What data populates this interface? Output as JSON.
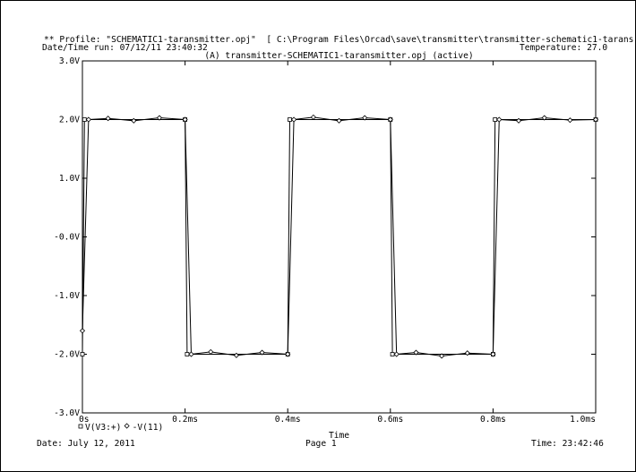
{
  "header": {
    "profile": "** Profile: \"SCHEMATIC1-taransmitter.opj\"  [ C:\\Program Files\\Orcad\\save\\transmitter\\transmitter-schematic1-tarans",
    "date_run": "Date/Time run: 07/12/11 23:40:32",
    "temperature": "Temperature: 27.0",
    "plot_title": "(A) transmitter-SCHEMATIC1-taransmitter.opj (active)"
  },
  "footer": {
    "date": "Date: July 12, 2011",
    "page": "Page 1",
    "time": "Time: 23:42:46"
  },
  "chart_data": {
    "type": "line",
    "title": "(A) transmitter-SCHEMATIC1-taransmitter.opj (active)",
    "xlabel": "Time",
    "ylabel": "",
    "xlim": [
      0,
      1.0
    ],
    "ylim": [
      -3.0,
      3.0
    ],
    "x_unit": "ms",
    "x_ticks": [
      0,
      0.2,
      0.4,
      0.6,
      0.8,
      1.0
    ],
    "x_tick_labels": [
      "0s",
      "0.2ms",
      "0.4ms",
      "0.6ms",
      "0.8ms",
      "1.0ms"
    ],
    "y_ticks": [
      3.0,
      2.0,
      1.0,
      0.0,
      -1.0,
      -2.0,
      -3.0
    ],
    "y_tick_labels": [
      "3.0V",
      "2.0V",
      "1.0V",
      "-0.0V",
      "-1.0V",
      "-2.0V",
      "-3.0V"
    ],
    "grid": false,
    "legend_position": "bottom-left",
    "series": [
      {
        "name": "V(V3:+)",
        "marker": "square",
        "x": [
          0,
          0.004,
          0.2,
          0.204,
          0.4,
          0.404,
          0.6,
          0.604,
          0.8,
          0.804,
          1.0
        ],
        "y": [
          -2.0,
          2.0,
          2.0,
          -2.0,
          -2.0,
          2.0,
          2.0,
          -2.0,
          -2.0,
          2.0,
          2.0
        ]
      },
      {
        "name": "V(11)",
        "marker": "diamond",
        "x": [
          0,
          0.012,
          0.05,
          0.1,
          0.15,
          0.2,
          0.212,
          0.25,
          0.3,
          0.35,
          0.4,
          0.412,
          0.45,
          0.5,
          0.55,
          0.6,
          0.612,
          0.65,
          0.7,
          0.75,
          0.8,
          0.812,
          0.85,
          0.9,
          0.95,
          1.0
        ],
        "y": [
          -1.6,
          2.0,
          2.02,
          1.98,
          2.03,
          2.0,
          -2.0,
          -1.96,
          -2.02,
          -1.97,
          -2.0,
          2.0,
          2.04,
          1.98,
          2.03,
          2.0,
          -2.0,
          -1.97,
          -2.03,
          -1.98,
          -2.0,
          2.0,
          1.98,
          2.03,
          1.99,
          2.0
        ]
      }
    ],
    "legend": [
      "V(V3:+)",
      "-V(11)"
    ]
  }
}
